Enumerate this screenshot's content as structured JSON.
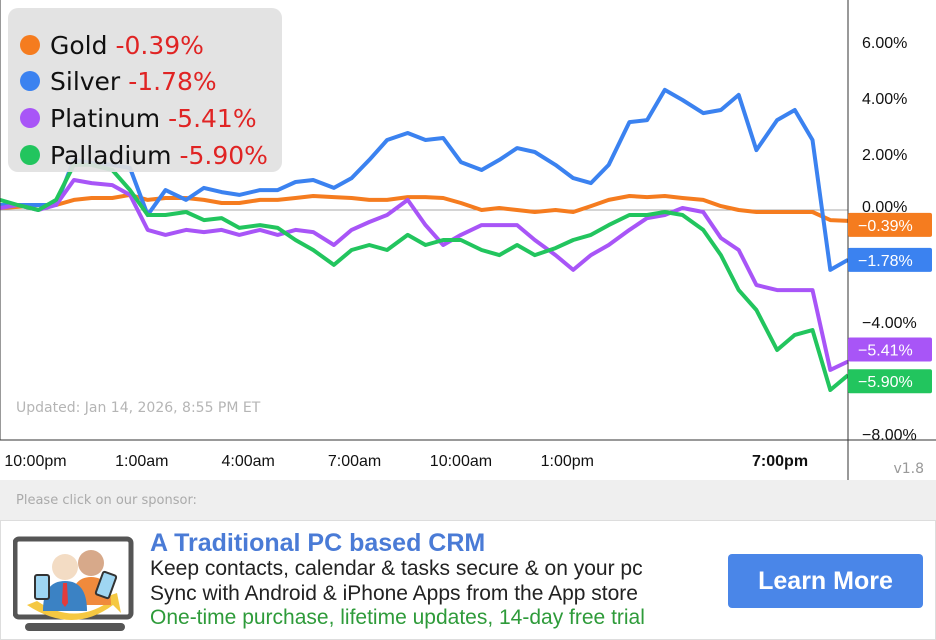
{
  "chart_data": {
    "type": "line",
    "ylabel": "",
    "xlabel": "",
    "ylim": [
      -8.5,
      7.5
    ],
    "y_ticks": [
      "6.00%",
      "4.00%",
      "2.00%",
      "0.00%",
      "−4.00%",
      "−8.00%"
    ],
    "y_tick_values": [
      6,
      4,
      2,
      0,
      -4,
      -8
    ],
    "x_ticks": [
      "10:00pm",
      "1:00am",
      "4:00am",
      "7:00am",
      "10:00am",
      "1:00pm",
      "7:00pm"
    ],
    "x_tick_times": [
      "2026-01-13T22:00",
      "2026-01-14T01:00",
      "2026-01-14T04:00",
      "2026-01-14T07:00",
      "2026-01-14T10:00",
      "2026-01-14T13:00",
      "2026-01-14T19:00"
    ],
    "x_tick_bold": "7:00pm",
    "xlim": [
      "2026-01-13T21:00",
      "2026-01-14T20:55"
    ],
    "x": [
      "2026-01-13T21:00",
      "2026-01-13T21:30",
      "2026-01-13T22:05",
      "2026-01-13T22:35",
      "2026-01-13T23:05",
      "2026-01-13T23:35",
      "2026-01-14T00:10",
      "2026-01-14T00:40",
      "2026-01-14T01:10",
      "2026-01-14T01:40",
      "2026-01-14T02:15",
      "2026-01-14T02:45",
      "2026-01-14T03:15",
      "2026-01-14T03:45",
      "2026-01-14T04:20",
      "2026-01-14T04:50",
      "2026-01-14T05:20",
      "2026-01-14T05:50",
      "2026-01-14T06:25",
      "2026-01-14T06:55",
      "2026-01-14T07:25",
      "2026-01-14T07:55",
      "2026-01-14T08:30",
      "2026-01-14T09:00",
      "2026-01-14T09:30",
      "2026-01-14T10:00",
      "2026-01-14T10:35",
      "2026-01-14T11:05",
      "2026-01-14T11:35",
      "2026-01-14T12:05",
      "2026-01-14T12:40",
      "2026-01-14T13:10",
      "2026-01-14T13:40",
      "2026-01-14T14:10",
      "2026-01-14T14:45",
      "2026-01-14T15:15",
      "2026-01-14T15:45",
      "2026-01-14T16:15",
      "2026-01-14T16:50",
      "2026-01-14T17:20",
      "2026-01-14T17:50",
      "2026-01-14T18:20",
      "2026-01-14T18:55",
      "2026-01-14T19:25",
      "2026-01-14T19:55",
      "2026-01-14T20:25",
      "2026-01-14T20:55"
    ],
    "series": [
      {
        "name": "Gold",
        "change": "-0.39%",
        "end_label": "−0.39%",
        "color": "#f57c1f",
        "values": [
          0.07,
          0.11,
          0.18,
          0.18,
          0.36,
          0.43,
          0.43,
          0.54,
          0.36,
          0.43,
          0.43,
          0.36,
          0.25,
          0.25,
          0.36,
          0.36,
          0.43,
          0.5,
          0.46,
          0.43,
          0.36,
          0.36,
          0.46,
          0.46,
          0.43,
          0.25,
          0,
          0.07,
          0,
          -0.07,
          0,
          -0.07,
          0.14,
          0.36,
          0.5,
          0.46,
          0.5,
          0.43,
          0.36,
          0.14,
          0,
          -0.07,
          -0.07,
          -0.07,
          -0.07,
          -0.36,
          -0.39
        ]
      },
      {
        "name": "Silver",
        "change": "-1.78%",
        "end_label": "−1.78%",
        "color": "#3b82f0",
        "values": [
          0.18,
          0.18,
          0.18,
          0.18,
          1.79,
          1.68,
          1.61,
          1.5,
          -0.18,
          0.71,
          0.36,
          0.79,
          0.64,
          0.54,
          0.71,
          0.71,
          1.0,
          1.07,
          0.79,
          1.14,
          1.79,
          2.5,
          2.75,
          2.5,
          2.57,
          1.71,
          1.43,
          1.79,
          2.21,
          2.07,
          1.61,
          1.14,
          0.96,
          1.61,
          3.14,
          3.21,
          4.29,
          3.93,
          3.46,
          3.57,
          4.11,
          2.14,
          3.21,
          3.57,
          2.5,
          -2.14,
          -1.78
        ]
      },
      {
        "name": "Platinum",
        "change": "-5.41%",
        "end_label": "−5.41%",
        "color": "#a855f7",
        "values": [
          0.07,
          0.18,
          0,
          0.18,
          1.07,
          0.96,
          0.89,
          0.54,
          -0.71,
          -0.89,
          -0.71,
          -0.79,
          -0.71,
          -0.89,
          -0.71,
          -0.89,
          -0.71,
          -0.79,
          -1.25,
          -0.71,
          -0.43,
          -0.18,
          0.36,
          -0.54,
          -1.25,
          -0.89,
          -0.54,
          -0.54,
          -0.54,
          -1.07,
          -1.61,
          -2.14,
          -1.61,
          -1.25,
          -0.71,
          -0.29,
          -0.18,
          0.07,
          -0.07,
          -1.0,
          -1.43,
          -2.68,
          -2.86,
          -2.86,
          -2.86,
          -5.71,
          -5.41
        ]
      },
      {
        "name": "Palladium",
        "change": "-5.90%",
        "end_label": "−5.90%",
        "color": "#22c55e",
        "values": [
          0.36,
          0.18,
          0,
          0.36,
          1.61,
          1.61,
          1.43,
          0.71,
          -0.18,
          -0.18,
          -0.07,
          -0.36,
          -0.29,
          -0.64,
          -0.54,
          -0.64,
          -1.07,
          -1.43,
          -1.96,
          -1.43,
          -1.25,
          -1.43,
          -0.89,
          -1.25,
          -1.07,
          -1.07,
          -1.43,
          -1.61,
          -1.25,
          -1.61,
          -1.36,
          -1.07,
          -0.89,
          -0.54,
          -0.18,
          -0.18,
          -0.07,
          -0.18,
          -0.71,
          -1.61,
          -2.86,
          -3.57,
          -5.0,
          -4.46,
          -4.29,
          -6.43,
          -5.9
        ]
      }
    ],
    "baseline": 0,
    "grid": false,
    "legend": "top-left"
  },
  "updated": "Updated: Jan 14, 2026, 8:55 PM ET",
  "version": "v1.8",
  "sponsor": {
    "label": "Please click on our sponsor:",
    "title": "A Traditional PC based CRM",
    "line1": "Keep contacts, calendar & tasks secure & on your pc",
    "line2": "Sync with Android & iPhone Apps from the App store",
    "line3": "One-time purchase, lifetime updates, 14-day free trial",
    "button": "Learn More",
    "icon": "crm-people-phones-monitor-icon"
  }
}
